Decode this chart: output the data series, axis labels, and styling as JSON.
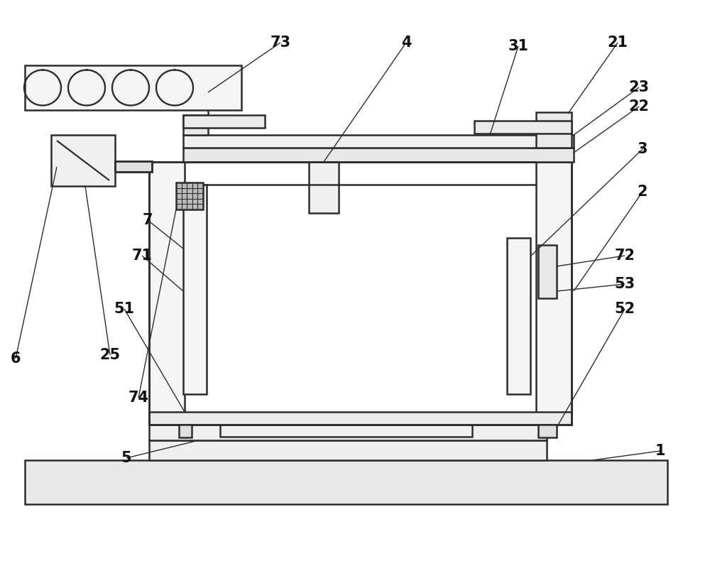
{
  "bg_color": "#ffffff",
  "lc": "#2d2d2d",
  "lw": 1.8,
  "lw_thin": 1.0,
  "font_size": 15,
  "font_weight": "bold"
}
